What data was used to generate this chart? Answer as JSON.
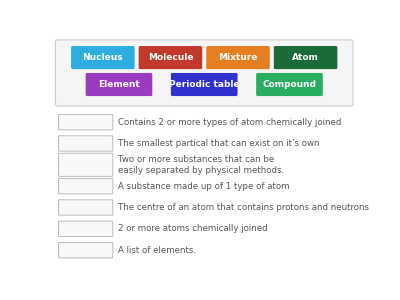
{
  "background_color": "#ffffff",
  "button_row1": [
    {
      "label": "Nucleus",
      "color": "#2eaee0"
    },
    {
      "label": "Molecule",
      "color": "#c0392b"
    },
    {
      "label": "Mixture",
      "color": "#e67e22"
    },
    {
      "label": "Atom",
      "color": "#1a6b38"
    }
  ],
  "button_row2": [
    {
      "label": "Element",
      "color": "#9b3bbf"
    },
    {
      "label": "Periodic table",
      "color": "#3030cc"
    },
    {
      "label": "Compound",
      "color": "#27ae60"
    }
  ],
  "definitions": [
    "Contains 2 or more types of atom chemically joined",
    "The smallest partical that can exist on it's own",
    "Two or more substances that can be\neasily separated by physical methods.",
    "A substance made up of 1 type of atom",
    "The centre of an atom that contains protons and neutrons",
    "2 or more atoms chemically joined",
    "A list of elements."
  ],
  "box_border": "#bbbbbb",
  "text_color": "#555555",
  "font_size_btn": 6.5,
  "font_size_def": 6.2,
  "container_color": "#f5f5f5",
  "container_border": "#cccccc"
}
